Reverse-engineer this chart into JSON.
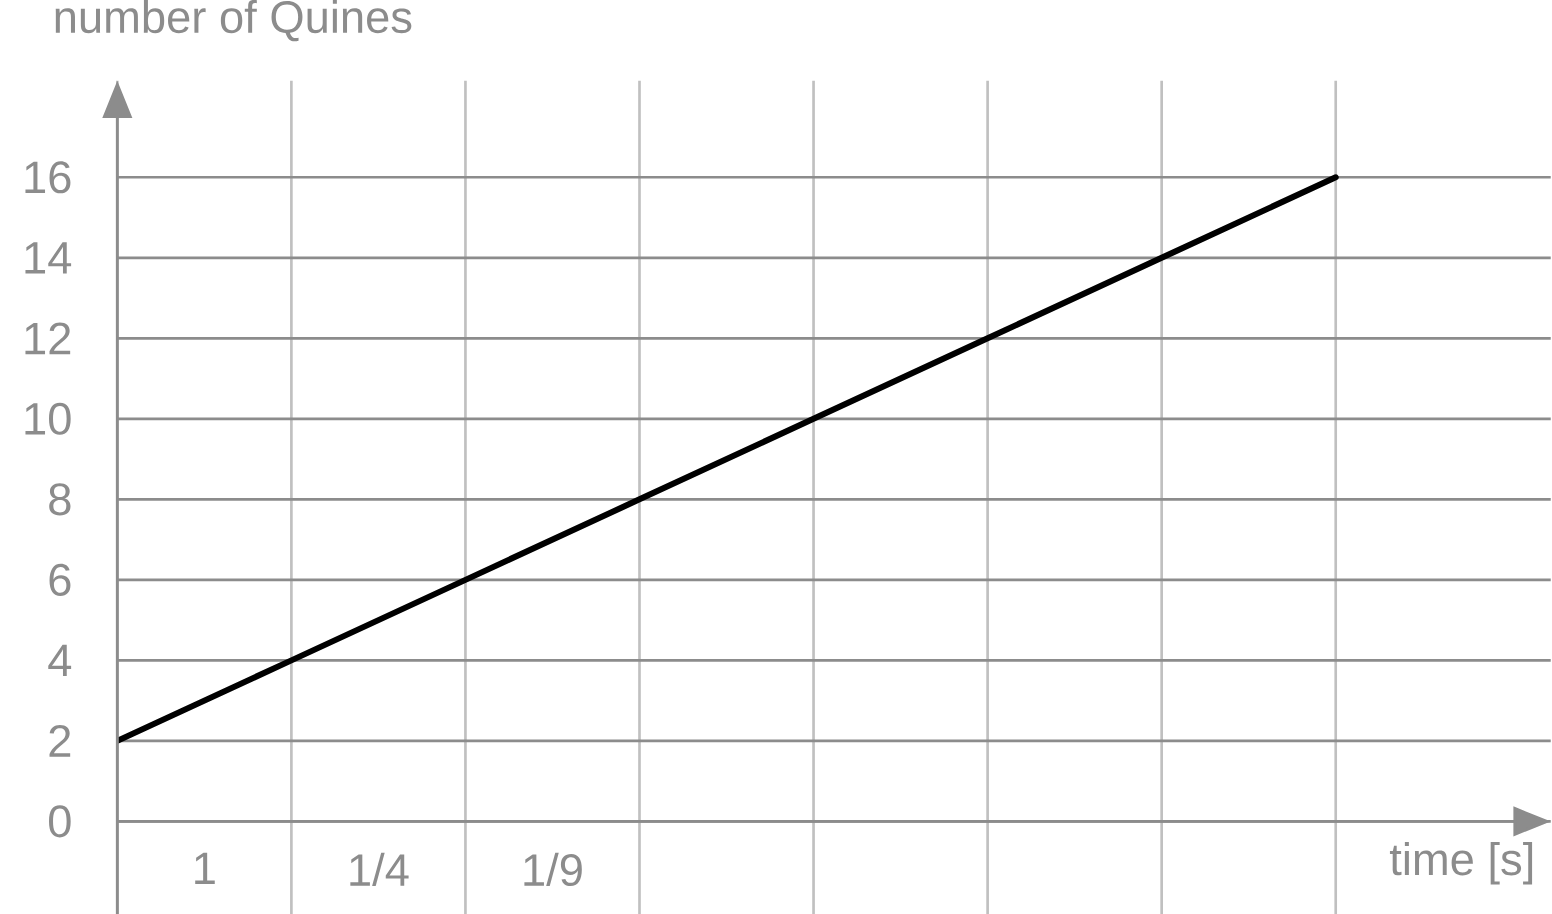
{
  "chart_data": {
    "type": "line",
    "xlabel": "time [s]",
    "ylabel": "number of Quines",
    "categories": [
      null,
      null,
      null,
      null,
      null,
      null,
      null,
      null
    ],
    "values": [
      2,
      4,
      6,
      8,
      10,
      12,
      14,
      16
    ],
    "color": "#000000",
    "marker": "none",
    "line_style": "solid",
    "ylim": [
      -2.3,
      18.4
    ],
    "yticks": [
      0,
      2,
      4,
      6,
      8,
      10,
      12,
      14,
      16
    ],
    "annotations": [
      "1",
      "1/4",
      "1/9"
    ],
    "grid": true
  }
}
